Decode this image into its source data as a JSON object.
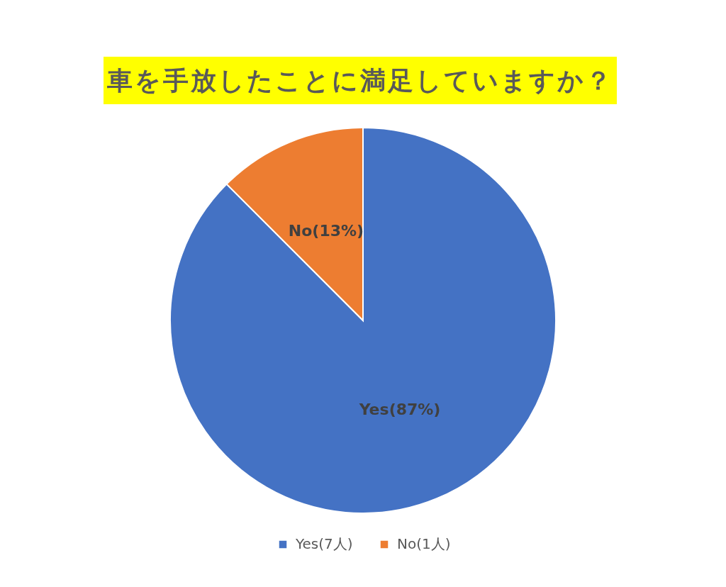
{
  "chart_data": {
    "type": "pie",
    "title": "車を手放したことに満足していますか？",
    "categories": [
      "Yes(7人)",
      "No(1人)"
    ],
    "values": [
      7,
      1
    ],
    "colors": [
      "#4472c4",
      "#ed7d31"
    ],
    "value_labels": [
      "Yes(87%)",
      "No(13%)"
    ],
    "legend": "bottom"
  }
}
